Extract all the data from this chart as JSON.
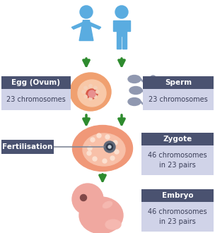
{
  "bg_color": "#ffffff",
  "arrow_color": "#2e8b2e",
  "label_bg_dark": "#4a5270",
  "label_bg_light": "#d0d3e8",
  "label_text_white": "#ffffff",
  "label_text_dark": "#3a3e58",
  "person_color": "#5aace0",
  "egg_color_outer": "#f0a070",
  "egg_color_inner": "#f8c8a8",
  "egg_nucleus_color": "#d85848",
  "egg_dot_color": "#f5d0b8",
  "zygote_color_outer": "#f09878",
  "zygote_color_inner": "#f8c0a8",
  "zygote_dot_color": "#fce0d0",
  "zygote_dark_dot": "#606878",
  "zygote_inner_dot": "#303848",
  "embryo_color": "#f0a8a0",
  "embryo_dark": "#804848",
  "sperm_color": "#9098b0",
  "fert_box_color": "#4a5270",
  "fert_text_color": "#ffffff",
  "egg_label_title": "Egg (Ovum)",
  "egg_label_sub": "23 chromosomes",
  "sperm_label_title": "Sperm",
  "sperm_label_sub": "23 chromosomes",
  "zygote_label_title": "Zygote",
  "zygote_label_sub": "46 chromosomes\nin 23 pairs",
  "embryo_label_title": "Embryo",
  "embryo_label_sub": "46 chromosomes\nin 23 pairs",
  "fertilisation_label": "Fertilisation",
  "figw": 3.04,
  "figh": 3.3,
  "dpi": 100
}
